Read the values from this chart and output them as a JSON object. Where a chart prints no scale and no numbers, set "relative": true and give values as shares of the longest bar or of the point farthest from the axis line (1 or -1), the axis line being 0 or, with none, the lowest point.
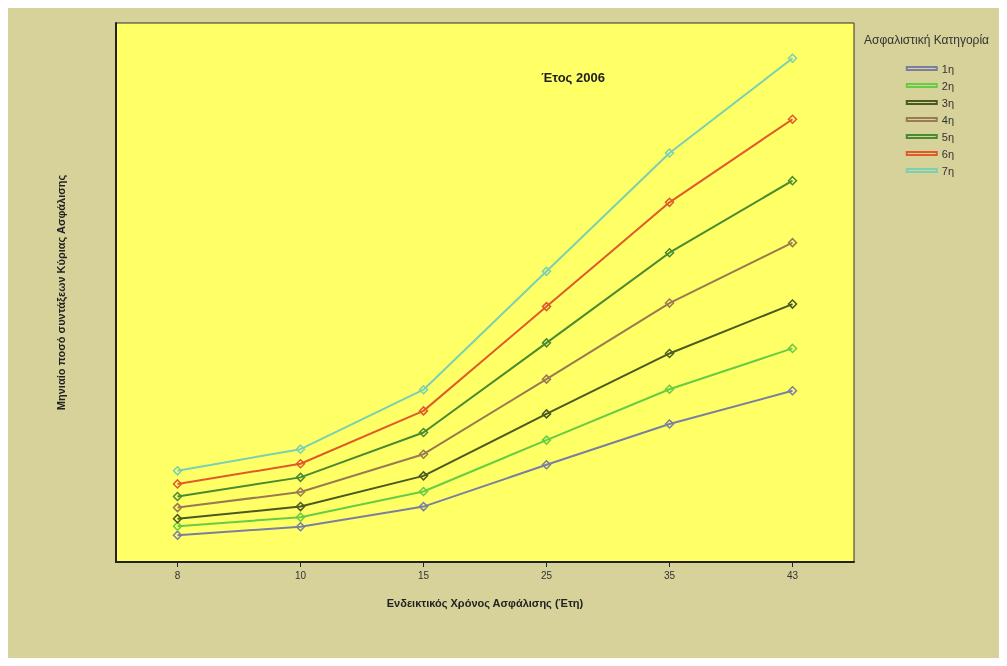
{
  "chart_data": {
    "type": "line",
    "title": "Έτος 2006",
    "xlabel": "Ενδεικτικός Χρόνος Ασφάλισης (Έτη)",
    "ylabel": "Μηνιαίο ποσό συντάξεων Κύριας Ασφάλισης",
    "legend_title": "Ασφαλιστική Κατηγορία",
    "relative": true,
    "legend": "top right",
    "marker": "diamond",
    "grid": false,
    "categories": [
      "8",
      "10",
      "15",
      "25",
      "35",
      "43"
    ],
    "series": [
      {
        "name": "1η",
        "color": "#7a7fa0",
        "values": [
          0.053,
          0.07,
          0.11,
          0.193,
          0.274,
          0.34
        ]
      },
      {
        "name": "2η",
        "color": "#66cc44",
        "values": [
          0.071,
          0.089,
          0.14,
          0.242,
          0.343,
          0.424
        ]
      },
      {
        "name": "3η",
        "color": "#4a5a20",
        "values": [
          0.086,
          0.11,
          0.171,
          0.294,
          0.414,
          0.512
        ]
      },
      {
        "name": "4η",
        "color": "#9a7a50",
        "values": [
          0.108,
          0.139,
          0.214,
          0.363,
          0.514,
          0.634
        ]
      },
      {
        "name": "5η",
        "color": "#4a8a30",
        "values": [
          0.13,
          0.168,
          0.257,
          0.435,
          0.614,
          0.757
        ]
      },
      {
        "name": "6η",
        "color": "#e05a2a",
        "values": [
          0.155,
          0.195,
          0.3,
          0.507,
          0.714,
          0.879
        ]
      },
      {
        "name": "7η",
        "color": "#7ad0b0",
        "values": [
          0.181,
          0.224,
          0.342,
          0.577,
          0.812,
          1
        ]
      }
    ]
  }
}
